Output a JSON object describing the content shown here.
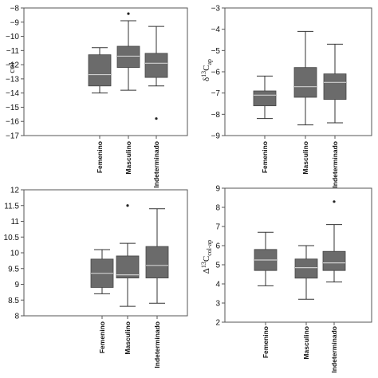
{
  "chart_data": [
    {
      "type": "box",
      "panel": "top-left",
      "categories": [
        "Femenino",
        "Masculino",
        "Indeterminado"
      ],
      "ylabel_fragment": "col",
      "ylim": [
        -17,
        -8
      ],
      "ticks": [
        -8,
        -9,
        -10,
        -11,
        -12,
        -13,
        -14,
        -15,
        -16,
        -17
      ],
      "boxes": [
        {
          "min": -14,
          "q1": -13.5,
          "median": -12.7,
          "q3": -11.3,
          "max": -10.8,
          "outliers": []
        },
        {
          "min": -13.8,
          "q1": -12.2,
          "median": -11.4,
          "q3": -10.7,
          "max": -8.9,
          "outliers": [
            -8.4
          ]
        },
        {
          "min": -13.5,
          "q1": -12.9,
          "median": -11.9,
          "q3": -11.2,
          "max": -9.3,
          "outliers": [
            -15.8
          ]
        }
      ]
    },
    {
      "type": "box",
      "panel": "top-right",
      "categories": [
        "Femenino",
        "Masculino",
        "Indeterminado"
      ],
      "ylabel": "δ13Cap",
      "ylim": [
        -9,
        -3
      ],
      "ticks": [
        -3,
        -4,
        -5,
        -6,
        -7,
        -8,
        -9
      ],
      "boxes": [
        {
          "min": -8.2,
          "q1": -7.6,
          "median": -7.1,
          "q3": -6.9,
          "max": -6.2,
          "outliers": []
        },
        {
          "min": -8.5,
          "q1": -7.2,
          "median": -6.7,
          "q3": -5.8,
          "max": -4.1,
          "outliers": []
        },
        {
          "min": -8.4,
          "q1": -7.3,
          "median": -6.5,
          "q3": -6.1,
          "max": -4.7,
          "outliers": []
        }
      ]
    },
    {
      "type": "box",
      "panel": "bottom-left",
      "categories": [
        "Femenino",
        "Masculino",
        "Indeterminado"
      ],
      "ylim": [
        8,
        12
      ],
      "ticks": [
        12,
        11.5,
        11,
        10.5,
        10,
        9.5,
        9,
        8.5,
        8
      ],
      "boxes": [
        {
          "min": 8.7,
          "q1": 8.9,
          "median": 9.35,
          "q3": 9.8,
          "max": 10.1,
          "outliers": []
        },
        {
          "min": 8.3,
          "q1": 9.2,
          "median": 9.3,
          "q3": 9.9,
          "max": 10.3,
          "outliers": [
            11.5
          ]
        },
        {
          "min": 8.4,
          "q1": 9.2,
          "median": 9.6,
          "q3": 10.2,
          "max": 11.4,
          "outliers": []
        }
      ]
    },
    {
      "type": "box",
      "panel": "bottom-right",
      "categories": [
        "Femenino",
        "Masculino",
        "Indeterminado"
      ],
      "ylabel": "Δ13Ccol-ap",
      "ylim": [
        2,
        9
      ],
      "ticks": [
        9,
        8,
        7,
        6,
        5,
        4,
        3,
        2
      ],
      "boxes": [
        {
          "min": 3.9,
          "q1": 4.7,
          "median": 5.25,
          "q3": 5.8,
          "max": 6.7,
          "outliers": []
        },
        {
          "min": 3.2,
          "q1": 4.3,
          "median": 4.85,
          "q3": 5.3,
          "max": 6.0,
          "outliers": []
        },
        {
          "min": 4.1,
          "q1": 4.7,
          "median": 5.1,
          "q3": 5.7,
          "max": 7.1,
          "outliers": [
            8.3
          ]
        }
      ]
    }
  ],
  "style": {
    "box_fill": "#6b6b6b",
    "median_line": "#cfcfcf",
    "line": "#333333"
  }
}
